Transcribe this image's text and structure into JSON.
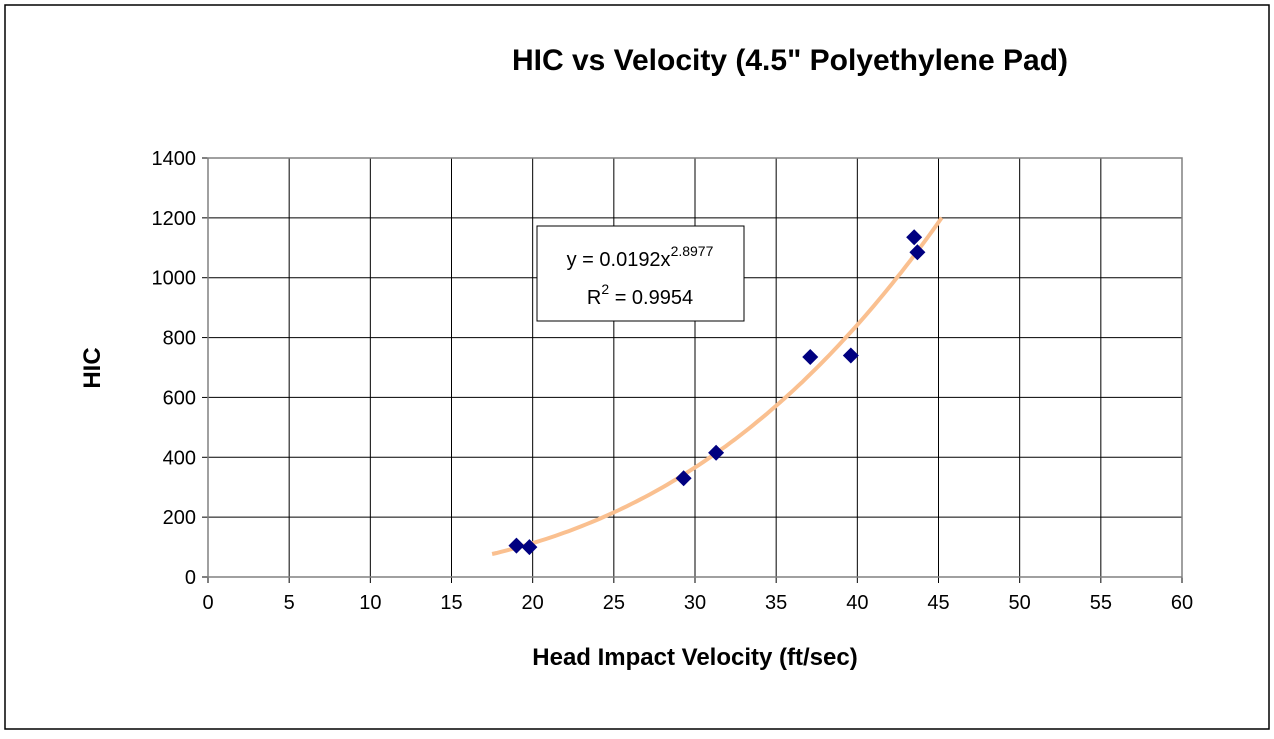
{
  "chart_data": {
    "type": "scatter",
    "title": "HIC vs Velocity (4.5\" Polyethylene Pad)",
    "xlabel": "Head Impact Velocity (ft/sec)",
    "ylabel": "HIC",
    "x": [
      19.0,
      19.8,
      29.3,
      31.3,
      37.1,
      39.6,
      43.5,
      43.7
    ],
    "series": [
      {
        "color": "#000080",
        "values": [
          105,
          100,
          330,
          415,
          735,
          740,
          1135,
          1085
        ]
      }
    ],
    "xlim": [
      0,
      60
    ],
    "xticks": [
      0,
      5,
      10,
      15,
      20,
      25,
      30,
      35,
      40,
      45,
      50,
      55,
      60
    ],
    "ylim": [
      0,
      1400
    ],
    "yticks": [
      0,
      200,
      400,
      600,
      800,
      1000,
      1200,
      1400
    ],
    "grid": true,
    "trendline": {
      "kind": "power",
      "coefficient": 0.0192,
      "exponent": 2.8977,
      "x_range": [
        17.5,
        45.2
      ],
      "color": "#fac090",
      "equation": {
        "text": "y = 0.0192x",
        "superscript": "2.8977"
      },
      "r_squared": {
        "text": "R",
        "superscript": "2",
        "suffix": " = 0.9954"
      }
    }
  }
}
